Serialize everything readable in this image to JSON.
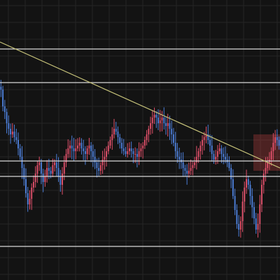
{
  "chart_data": {
    "type": "candlestick",
    "title": "",
    "xlabel": "",
    "ylabel": "",
    "ylim": [
      0,
      100
    ],
    "grid": true,
    "legend": "none",
    "colors": {
      "background": "#131313",
      "grid": "#262626",
      "up": "#e0506a",
      "down": "#4c7ed8",
      "level_line": "#d8d8d8",
      "trend_line": "#c8c47a",
      "zone": "#b84040"
    },
    "horizontal_levels": [
      82.5,
      70.5,
      42.5,
      37.0,
      12.0
    ],
    "trend_line": {
      "x": [
        0,
        400
      ],
      "y": [
        85,
        40
      ]
    },
    "zone": {
      "x": [
        362,
        400
      ],
      "y": [
        39,
        52
      ]
    },
    "series": [
      {
        "values": [
          68,
          62,
          60,
          56,
          54,
          52,
          53,
          51,
          50,
          47,
          44,
          40,
          36,
          31,
          27,
          29,
          33,
          35,
          38,
          41,
          42,
          38,
          35,
          37,
          40,
          39,
          38,
          41,
          42,
          40,
          37,
          34,
          38,
          42,
          45,
          47,
          48,
          47,
          46,
          47,
          48,
          49,
          47,
          46,
          45,
          47,
          48,
          46,
          44,
          42,
          40,
          39,
          41,
          43,
          44,
          46,
          48,
          50,
          52,
          54,
          53,
          51,
          49,
          47,
          46,
          45,
          46,
          47,
          46,
          45,
          45,
          44,
          46,
          47,
          48,
          50,
          52,
          54,
          56,
          58,
          59,
          58,
          56,
          57,
          58,
          56,
          55,
          56,
          54,
          52,
          49,
          46,
          44,
          43,
          42,
          40,
          39,
          38,
          39,
          40,
          41,
          42,
          44,
          46,
          48,
          50,
          51,
          52,
          50,
          48,
          45,
          43,
          44,
          46,
          47,
          45,
          44,
          43,
          42,
          40,
          36,
          30,
          25,
          20,
          18,
          21,
          28,
          33,
          36,
          34,
          30,
          26,
          22,
          18,
          20,
          27,
          34,
          38,
          40,
          42,
          43,
          46,
          49,
          51,
          50,
          48
        ]
      }
    ]
  }
}
